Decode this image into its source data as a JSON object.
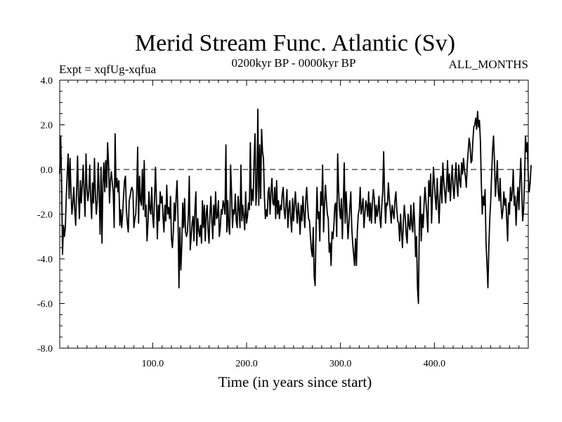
{
  "chart_data": {
    "type": "line",
    "title": "Merid Stream Func. Atlantic (Sv)",
    "subtitle_left": "Expt = xqfUg-xqfua",
    "subtitle_center": "0200kyr BP - 0000kyr BP",
    "subtitle_right": "ALL_MONTHS",
    "xlabel": "Time (in years since start)",
    "ylabel": "",
    "xlim": [
      1,
      500
    ],
    "ylim": [
      -8.0,
      4.0
    ],
    "x_ticks": [
      100,
      200,
      300,
      400
    ],
    "x_tick_labels": [
      "100.0",
      "200.0",
      "300.0",
      "400.0"
    ],
    "y_ticks": [
      4,
      2,
      0,
      -2,
      -4,
      -6,
      -8
    ],
    "y_tick_labels": [
      "4.0",
      "2.0",
      "0.0",
      "-2.0",
      "-4.0",
      "-6.0",
      "-8.0"
    ],
    "reference_line": 0.0,
    "series": [
      {
        "name": "xqfUg-xqfua",
        "x_start": 1,
        "x_step": 1,
        "values": [
          -0.2,
          1.5,
          -0.5,
          -3.8,
          -2.5,
          -3.0,
          -2.6,
          -1.2,
          -0.2,
          0.7,
          -1.3,
          0.5,
          -1.0,
          -2.0,
          -1.5,
          -0.8,
          -1.8,
          -2.5,
          -1.0,
          0.6,
          -1.2,
          -2.2,
          -0.5,
          -1.5,
          -0.7,
          0.2,
          -1.0,
          -2.1,
          0.7,
          -0.8,
          -1.4,
          -1.0,
          0.2,
          -1.3,
          -2.2,
          -0.6,
          -1.5,
          0.5,
          -1.1,
          -2.0,
          -1.4,
          0.3,
          -1.0,
          -2.9,
          0.1,
          -3.3,
          -0.6,
          0.3,
          -1.0,
          0.4,
          -0.8,
          1.2,
          0.3,
          -1.5,
          -0.5,
          -0.1,
          -0.6,
          -1.0,
          -2.6,
          1.6,
          -0.8,
          -0.4,
          -1.0,
          -0.5,
          -2.5,
          -1.8,
          -2.6,
          -2.0,
          -1.2,
          -0.5,
          -0.3,
          -1.8,
          -2.4,
          -2.8,
          -1.4,
          -1.2,
          -0.9,
          -0.8,
          -1.0,
          -2.6,
          -2.2,
          -2.0,
          -1.0,
          1.0,
          -2.4,
          -0.3,
          -1.4,
          -1.6,
          0.0,
          -1.8,
          0.4,
          -2.1,
          -1.6,
          -3.2,
          -2.4,
          -1.0,
          -1.8,
          -2.0,
          -0.8,
          -2.1,
          -2.6,
          -1.3,
          0.1,
          -1.4,
          -3.1,
          -1.6,
          -2.3,
          -1.0,
          -1.5,
          -1.2,
          -2.1,
          -2.8,
          -1.6,
          -2.3,
          -0.7,
          -2.0,
          -1.7,
          -2.2,
          -1.2,
          -3.1,
          -3.5,
          -2.8,
          -1.5,
          -2.3,
          -1.2,
          -0.5,
          -2.2,
          -5.3,
          -2.6,
          -4.5,
          -3.4,
          -1.5,
          -2.6,
          -1.3,
          -2.8,
          -3.0,
          -2.8,
          -2.0,
          -0.3,
          -3.6,
          -3.0,
          -2.4,
          -2.1,
          -3.2,
          -1.8,
          -1.0,
          -3.4,
          -2.2,
          -2.7,
          -3.0,
          -2.5,
          -3.3,
          -1.4,
          -2.6,
          -1.6,
          -3.2,
          -2.0,
          -1.6,
          -2.7,
          -3.3,
          -2.0,
          -1.2,
          -2.3,
          -3.1,
          -1.6,
          -2.5,
          -1.0,
          -2.2,
          -2.1,
          -1.4,
          -3.0,
          -2.6,
          -1.8,
          -2.0,
          -1.4,
          -1.6,
          -2.0,
          1.1,
          -2.8,
          -1.4,
          -2.6,
          -2.9,
          0.2,
          -1.0,
          -2.6,
          -1.8,
          -2.0,
          -1.1,
          -2.3,
          -2.6,
          -1.2,
          -1.8,
          -2.6,
          0.2,
          -2.3,
          -1.6,
          -2.1,
          -2.7,
          -1.0,
          -2.4,
          -2.1,
          -1.5,
          -1.8,
          1.2,
          -1.6,
          -0.9,
          -1.4,
          0.4,
          1.6,
          -1.6,
          -0.8,
          2.7,
          -1.6,
          1.1,
          -1.3,
          1.8,
          0.8,
          0.5,
          -1.2,
          -2.2,
          -1.8,
          -2.1,
          -1.0,
          -0.8,
          -2.0,
          -1.0,
          -0.4,
          -1.5,
          -1.6,
          -0.8,
          -2.2,
          -0.5,
          -2.0,
          -1.4,
          -2.2,
          -1.6,
          -1.8,
          -1.1,
          -0.8,
          -1.8,
          -2.2,
          -1.5,
          -0.9,
          -2.6,
          -1.8,
          -1.4,
          -2.2,
          -2.8,
          -1.3,
          -2.3,
          -1.6,
          -1.0,
          -1.8,
          -2.4,
          -1.5,
          -2.0,
          -2.9,
          -1.6,
          -2.3,
          -1.2,
          -2.0,
          -2.6,
          -1.4,
          -0.8,
          -1.6,
          -2.2,
          -2.3,
          -3.0,
          -3.6,
          -3.9,
          -2.6,
          -4.8,
          -5.2,
          -2.7,
          -0.8,
          -2.2,
          -1.9,
          -3.2,
          -1.0,
          -1.6,
          0.2,
          -2.8,
          -1.6,
          -0.7,
          -1.4,
          -2.0,
          -2.2,
          -3.7,
          -3.3,
          -4.3,
          -2.8,
          -3.1,
          -2.5,
          -1.6,
          -1.5,
          -3.0,
          0.7,
          -0.9,
          -1.8,
          -2.2,
          -1.3,
          -3.1,
          -1.6,
          0.3,
          -2.4,
          -1.0,
          -2.0,
          -3.1,
          -2.4,
          -1.7,
          -1.0,
          -2.6,
          -3.3,
          -3.8,
          -4.3,
          -3.1,
          -4.3,
          -2.7,
          -2.0,
          -1.8,
          -0.8,
          -2.0,
          -1.7,
          -1.3,
          -2.6,
          -2.0,
          -1.4,
          -1.6,
          -2.1,
          -1.0,
          -2.3,
          -1.5,
          -2.4,
          -1.5,
          -0.9,
          -1.3,
          -2.4,
          -1.6,
          -2.1,
          -1.8,
          -1.2,
          -2.2,
          -2.6,
          -1.6,
          -1.0,
          0.8,
          -1.2,
          -2.4,
          -1.5,
          -1.6,
          -0.6,
          -1.3,
          -1.8,
          -2.4,
          -1.6,
          -1.9,
          -2.2,
          -1.4,
          -1.0,
          -1.8,
          -2.3,
          -2.4,
          -3.2,
          -2.0,
          -2.8,
          -3.5,
          -2.3,
          -1.6,
          -2.2,
          -2.9,
          -3.3,
          -2.0,
          -2.5,
          -2.7,
          -1.6,
          -2.5,
          -2.8,
          -1.5,
          -2.4,
          -3.9,
          -3.0,
          -5.3,
          -6.0,
          -2.5,
          -1.2,
          -3.2,
          -2.0,
          -2.6,
          -1.6,
          -0.8,
          -1.4,
          -2.0,
          -2.8,
          -0.5,
          -1.2,
          -0.2,
          -2.4,
          -1.2,
          0.1,
          -0.6,
          -1.3,
          -1.8,
          -0.4,
          -1.4,
          -2.4,
          -1.2,
          -0.3,
          -1.5,
          0.3,
          -0.5,
          -1.0,
          -1.5,
          -0.7,
          0.4,
          -1.0,
          -0.2,
          -1.4,
          -0.6,
          0.2,
          -0.8,
          -1.3,
          -0.4,
          0.3,
          -0.7,
          -1.2,
          0.2,
          -0.5,
          -0.8,
          0.3,
          -0.2,
          0.5,
          0.0,
          -0.3,
          -0.8,
          0.2,
          0.8,
          1.4,
          1.1,
          0.3,
          0.4,
          1.3,
          1.9,
          2.0,
          2.3,
          1.8,
          2.6,
          1.9,
          2.2,
          1.3,
          -0.6,
          -2.0,
          -1.2,
          -1.6,
          -0.9,
          -3.3,
          -4.2,
          -5.3,
          -3.5,
          -2.2,
          -1.4,
          -0.2,
          0.9,
          1.5,
          0.4,
          -1.2,
          -0.5,
          0.4,
          -1.0,
          -1.4,
          -0.4,
          -1.6,
          -2.2,
          -1.8,
          -1.0,
          -1.6,
          -1.3,
          -2.2,
          -3.2,
          -1.5,
          -2.0,
          -0.8,
          -1.4,
          -1.0,
          0.0,
          -1.6,
          -1.2,
          -2.5,
          -1.4,
          -0.8,
          -1.8,
          -0.6,
          0.5,
          -0.8,
          -2.3,
          -1.8,
          -0.6,
          1.5,
          0.8,
          1.2,
          -0.3,
          -1.0,
          -0.6,
          0.2
        ]
      }
    ]
  }
}
